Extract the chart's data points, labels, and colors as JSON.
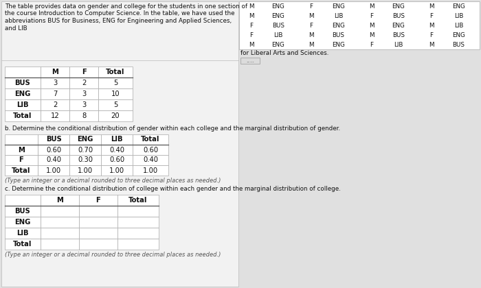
{
  "bg_color": "#e0e0e0",
  "white": "#ffffff",
  "text_color": "#111111",
  "gray_text": "#555555",
  "border_color": "#aaaaaa",
  "intro_lines": [
    "The table provides data on gender and college for the students in one section of",
    "the course Introduction to Computer Science. In the table, we have used the",
    "abbreviations BUS for Business, ENG for Engineering and Applied Sciences,",
    "and LIB"
  ],
  "for_lib_text": "for Liberal Arts and Sciences.",
  "raw_data_cols": [
    [
      [
        "M",
        "ENG"
      ],
      [
        "M",
        "ENG"
      ],
      [
        "F",
        "BUS"
      ],
      [
        "F",
        "LIB"
      ],
      [
        "M",
        "ENG"
      ]
    ],
    [
      [
        "F",
        "ENG"
      ],
      [
        "M",
        "LIB"
      ],
      [
        "F",
        "ENG"
      ],
      [
        "M",
        "BUS"
      ],
      [
        "M",
        "ENG"
      ]
    ],
    [
      [
        "M",
        "ENG"
      ],
      [
        "F",
        "BUS"
      ],
      [
        "M",
        "ENG"
      ],
      [
        "M",
        "BUS"
      ],
      [
        "F",
        "LIB"
      ]
    ],
    [
      [
        "M",
        "ENG"
      ],
      [
        "F",
        "LIB"
      ],
      [
        "M",
        "LIB"
      ],
      [
        "F",
        "ENG"
      ],
      [
        "M",
        "BUS"
      ]
    ]
  ],
  "table1_headers": [
    "",
    "M",
    "F",
    "Total"
  ],
  "table1_rows": [
    [
      "BUS",
      "3",
      "2",
      "5"
    ],
    [
      "ENG",
      "7",
      "3",
      "10"
    ],
    [
      "LIB",
      "2",
      "3",
      "5"
    ],
    [
      "Total",
      "12",
      "8",
      "20"
    ]
  ],
  "part_b_label": "b. Determine the conditional distribution of gender within each college and the marginal distribution of gender.",
  "table2_headers": [
    "",
    "BUS",
    "ENG",
    "LIB",
    "Total"
  ],
  "table2_rows": [
    [
      "M",
      "0.60",
      "0.70",
      "0.40",
      "0.60"
    ],
    [
      "F",
      "0.40",
      "0.30",
      "0.60",
      "0.40"
    ],
    [
      "Total",
      "1.00",
      "1.00",
      "1.00",
      "1.00"
    ]
  ],
  "type_note": "(Type an integer or a decimal rounded to three decimal places as needed.)",
  "part_c_label": "c. Determine the conditional distribution of college within each gender and the marginal distribution of college.",
  "table3_headers": [
    "",
    "M",
    "F",
    "Total"
  ],
  "table3_rows": [
    [
      "BUS",
      "",
      "",
      ""
    ],
    [
      "ENG",
      "",
      "",
      ""
    ],
    [
      "LIB",
      "",
      "",
      ""
    ],
    [
      "Total",
      "",
      "",
      ""
    ]
  ],
  "type_note2": "(Type an integer or a decimal rounded to three decimal places as needed.)"
}
